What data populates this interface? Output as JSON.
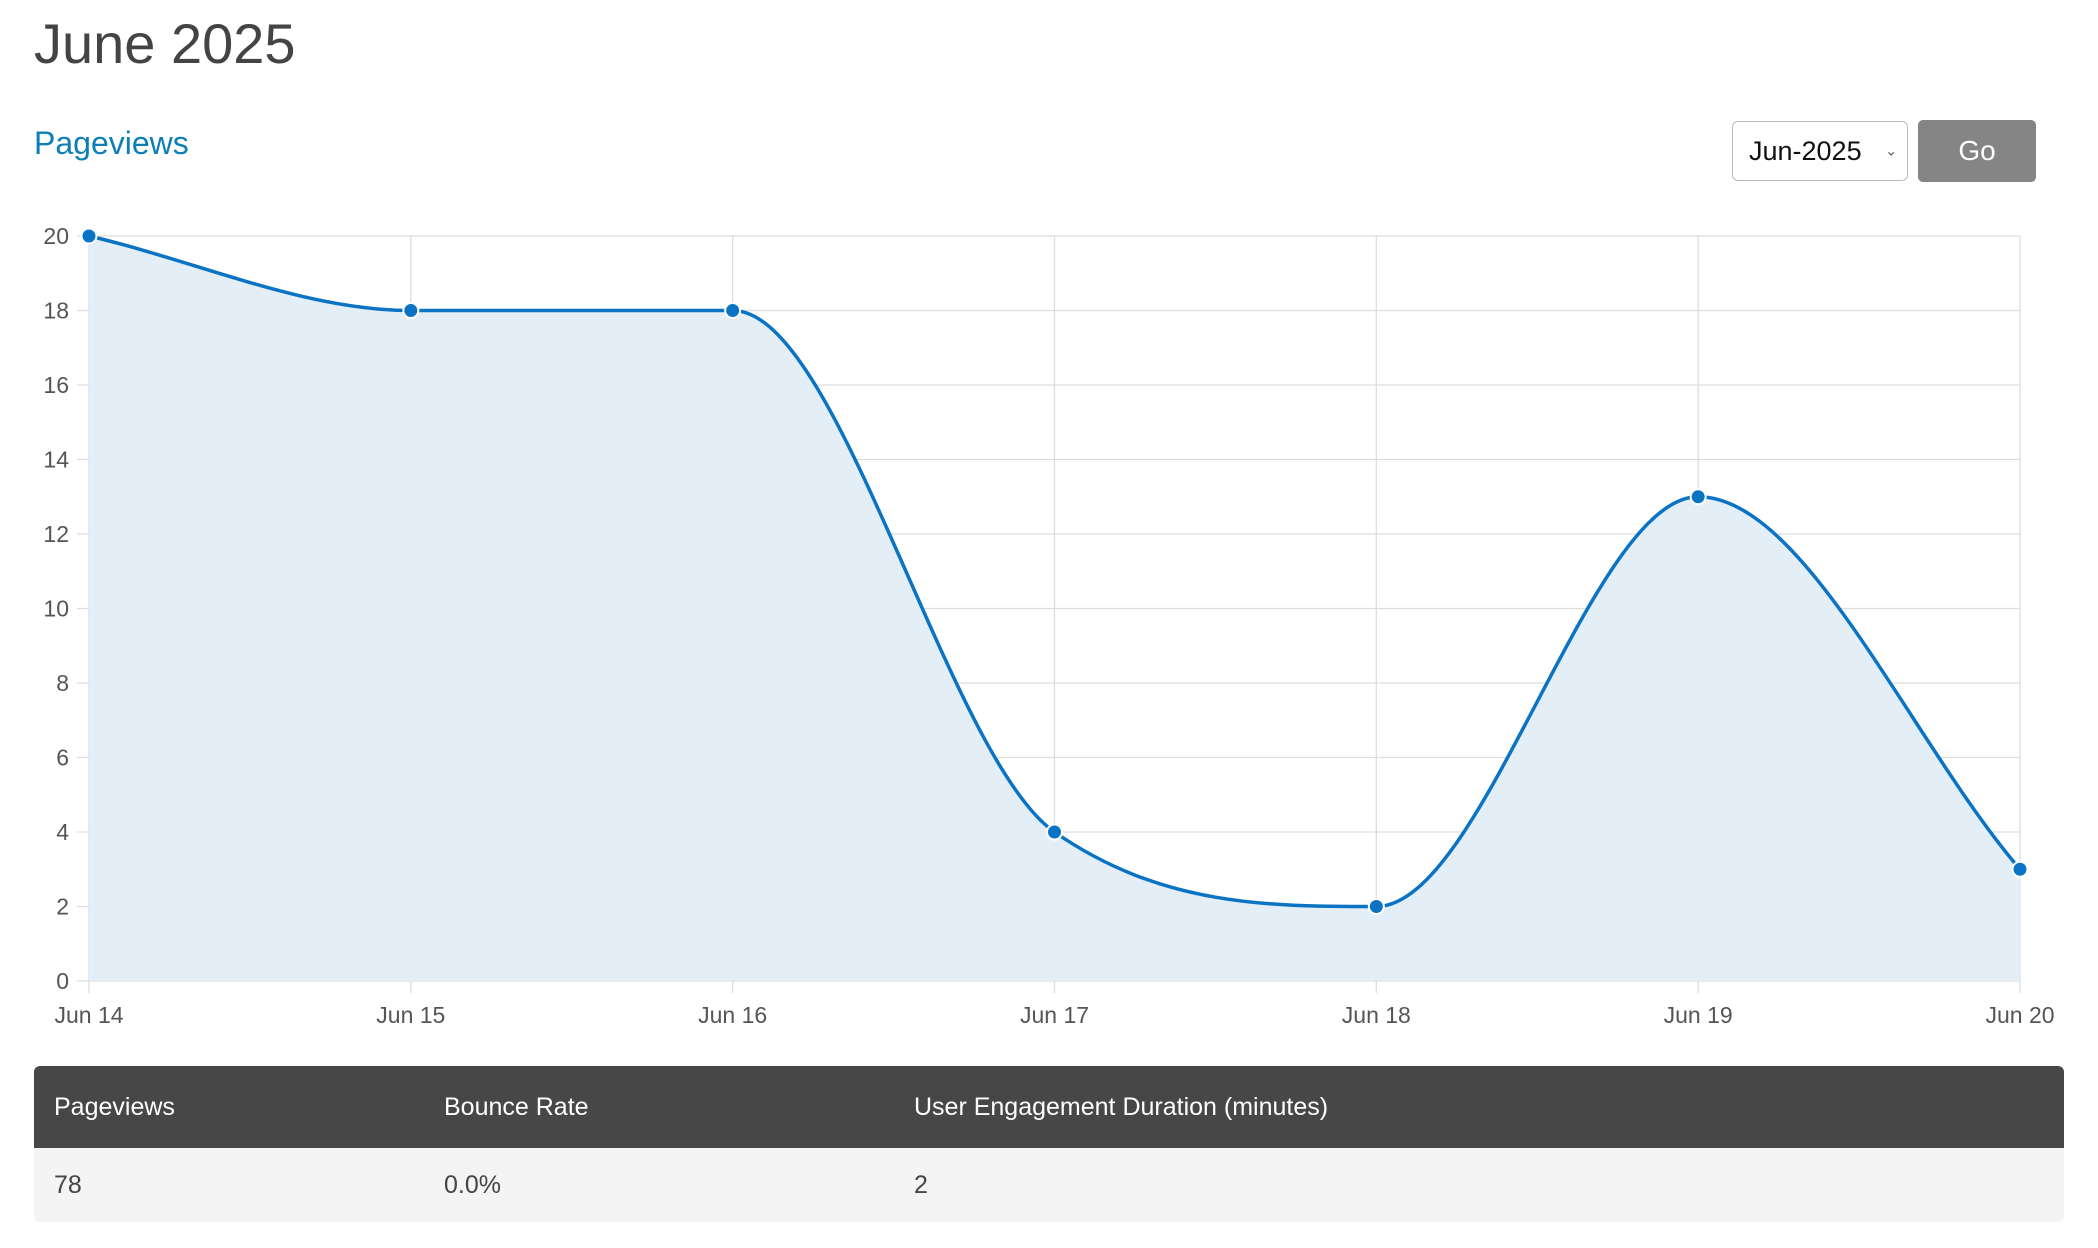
{
  "page": {
    "title": "June 2025"
  },
  "section": {
    "title": "Pageviews"
  },
  "controls": {
    "month_value": "Jun-2025",
    "go_label": "Go"
  },
  "colors": {
    "line": "#0a73c4",
    "fill": "#e3edf7",
    "grid": "#dddddd",
    "header_bg": "#474747",
    "link": "#0b7fb6"
  },
  "chart_data": {
    "type": "area",
    "categories": [
      "Jun 14",
      "Jun 15",
      "Jun 16",
      "Jun 17",
      "Jun 18",
      "Jun 19",
      "Jun 20"
    ],
    "series": [
      {
        "values": [
          20,
          18,
          18,
          4,
          2,
          13,
          3
        ]
      }
    ],
    "ylim": [
      0,
      20
    ],
    "yticks": [
      0,
      2,
      4,
      6,
      8,
      10,
      12,
      14,
      16,
      18,
      20
    ],
    "grid": true,
    "smooth": true,
    "markers": true
  },
  "table": {
    "headers": [
      "Pageviews",
      "Bounce Rate",
      "User Engagement Duration (minutes)"
    ],
    "row": [
      "78",
      "0.0%",
      "2"
    ]
  }
}
